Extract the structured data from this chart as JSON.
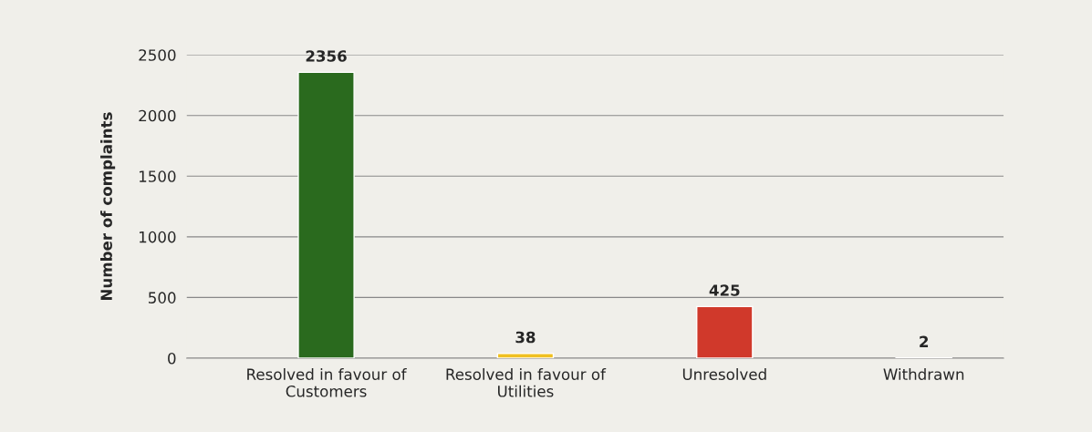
{
  "chart_data": {
    "type": "bar",
    "ylabel": "Number of complaints",
    "categories": [
      "Resolved in favour of\nCustomers",
      "Resolved in favour of\nUtilities",
      "Unresolved",
      "Withdrawn"
    ],
    "values": [
      2356,
      38,
      425,
      2
    ],
    "colors": [
      "#2a6a1e",
      "#f0c020",
      "#d0392b",
      "#3a8a3a"
    ],
    "ylim": [
      0,
      2500
    ],
    "yticks": [
      0,
      500,
      1000,
      1500,
      2000,
      2500
    ],
    "grid": "y",
    "data_labels": true
  }
}
